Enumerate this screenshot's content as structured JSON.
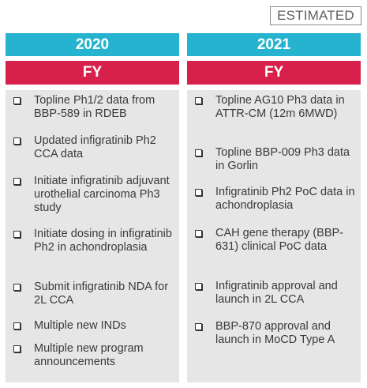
{
  "badge": "ESTIMATED",
  "columns": [
    {
      "year": "2020",
      "period": "FY",
      "items": [
        "Topline Ph1/2 data from BBP-589 in RDEB",
        "Updated infigratinib Ph2 CCA data",
        "Initiate infigratinib adjuvant urothelial carcinoma Ph3 study",
        "Initiate dosing in infigratinib Ph2 in achondroplasia",
        "Submit infigratinib NDA for 2L CCA",
        "Multiple new INDs",
        "Multiple new program announcements"
      ]
    },
    {
      "year": "2021",
      "period": "FY",
      "items": [
        "Topline AG10 Ph3 data in ATTR-CM (12m 6MWD)",
        "Topline BBP-009 Ph3 data in Gorlin",
        "Infigratinib Ph2 PoC data in achondroplasia",
        "CAH gene therapy (BBP-631) clinical PoC data",
        "Infigratinib approval and launch in 2L CCA",
        "BBP-870 approval and launch in MoCD Type A"
      ]
    }
  ]
}
